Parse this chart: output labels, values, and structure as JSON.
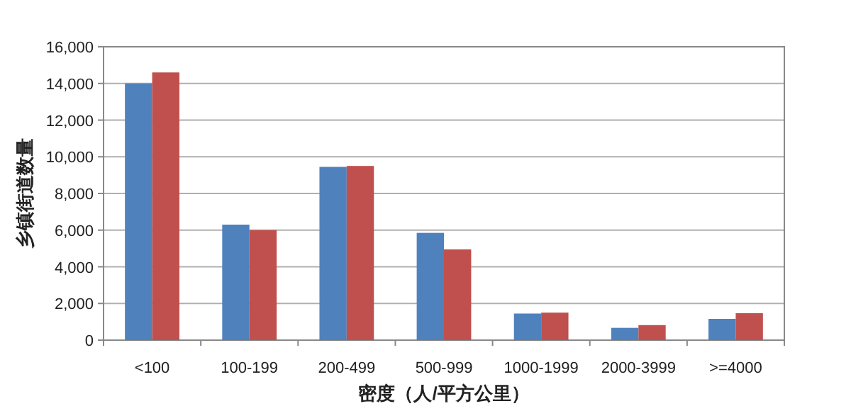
{
  "chart_data": {
    "type": "bar",
    "xlabel": "密度（人/平方公里）",
    "ylabel": "乡镇街道数量",
    "categories": [
      "<100",
      "100-199",
      "200-499",
      "500-999",
      "1000-1999",
      "2000-3999",
      ">=4000"
    ],
    "series": [
      {
        "color": "#4f81bd",
        "values": [
          14000,
          6300,
          9450,
          5850,
          1450,
          670,
          1160
        ]
      },
      {
        "color": "#c0504d",
        "values": [
          14600,
          6000,
          9500,
          4950,
          1500,
          820,
          1470
        ]
      }
    ],
    "ylim": [
      0,
      16000
    ],
    "yticks": [
      {
        "value": 0,
        "label": "0"
      },
      {
        "value": 2000,
        "label": "2,000"
      },
      {
        "value": 4000,
        "label": "4,000"
      },
      {
        "value": 6000,
        "label": "6,000"
      },
      {
        "value": 8000,
        "label": "8,000"
      },
      {
        "value": 10000,
        "label": "10,000"
      },
      {
        "value": 12000,
        "label": "12,000"
      },
      {
        "value": 14000,
        "label": "14,000"
      },
      {
        "value": 16000,
        "label": "16,000"
      }
    ],
    "grid": "y"
  }
}
